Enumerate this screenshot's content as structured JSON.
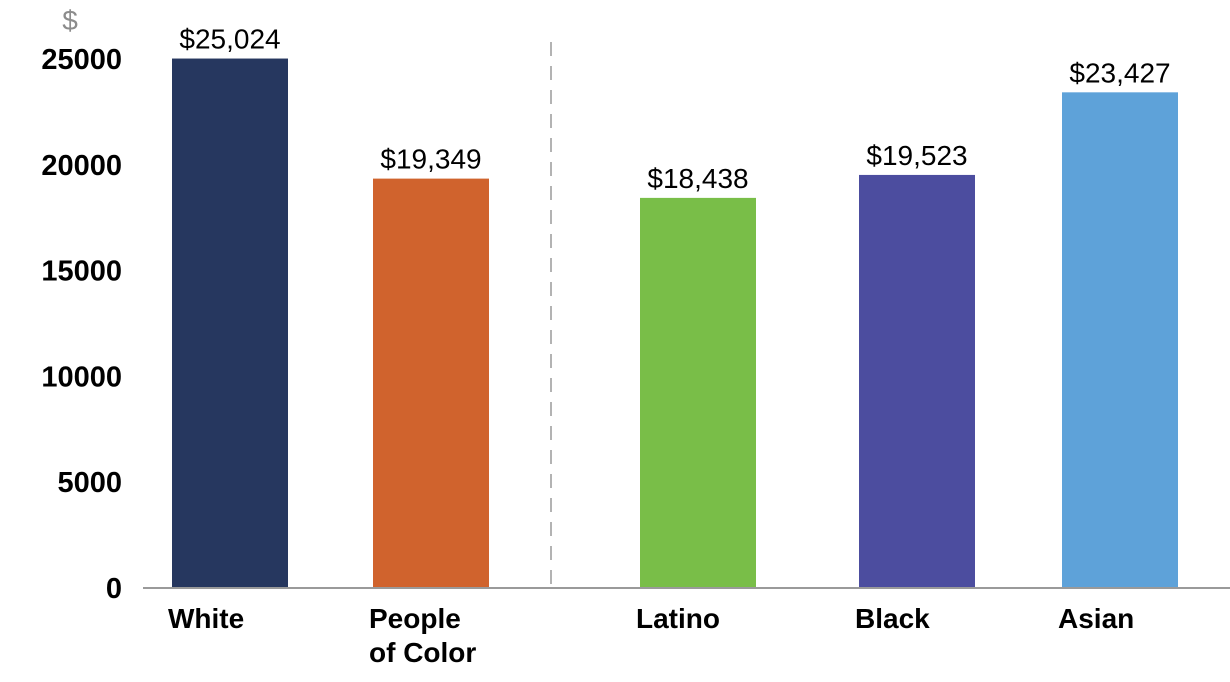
{
  "chart_data": {
    "type": "bar",
    "unit_label": "$",
    "categories": [
      [
        "White"
      ],
      [
        "People",
        "of Color"
      ],
      [
        "Latino"
      ],
      [
        "Black"
      ],
      [
        "Asian"
      ]
    ],
    "values": [
      25024,
      19349,
      18438,
      19523,
      23427
    ],
    "data_labels": [
      "$25,024",
      "$19,349",
      "$18,438",
      "$19,523",
      "$23,427"
    ],
    "colors": [
      "#26375f",
      "#d0632d",
      "#79be48",
      "#4c4d9f",
      "#5ea2d9"
    ],
    "yticks": [
      "0",
      "5000",
      "10000",
      "15000",
      "20000",
      "25000"
    ],
    "ytick_values": [
      0,
      5000,
      10000,
      15000,
      20000,
      25000
    ],
    "ylim": [
      0,
      25900
    ],
    "divider_after_category": 2,
    "title": "",
    "xlabel": "",
    "ylabel": ""
  }
}
